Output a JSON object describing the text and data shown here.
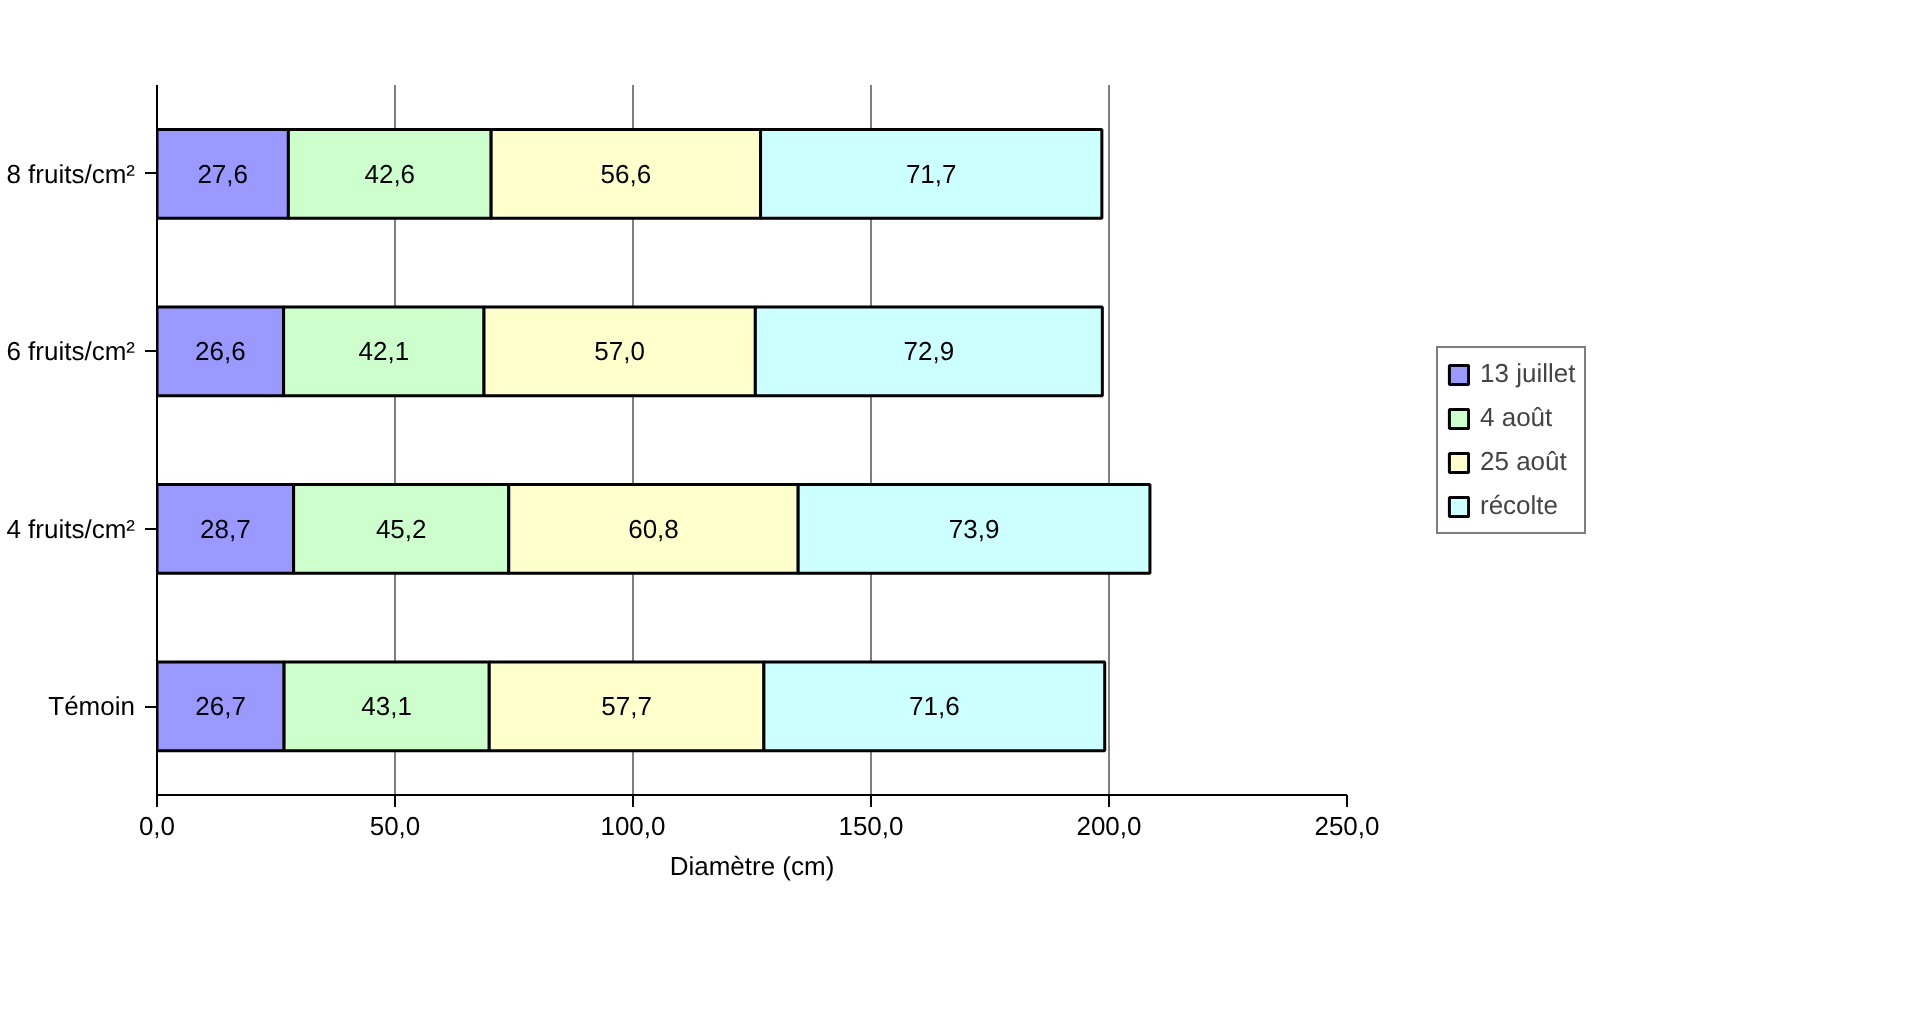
{
  "chart_data": {
    "type": "bar",
    "orientation": "horizontal",
    "stacked": true,
    "xlabel": "Diamètre (cm)",
    "categories": [
      "8 fruits/cm²",
      "6 fruits/cm²",
      "4 fruits/cm²",
      "Témoin"
    ],
    "series": [
      {
        "name": "13 juillet",
        "color": "#9999ff",
        "values": [
          27.6,
          26.6,
          28.7,
          26.7
        ],
        "value_labels": [
          "27,6",
          "26,6",
          "28,7",
          "26,7"
        ]
      },
      {
        "name": "4 août",
        "color": "#ccffcc",
        "values": [
          42.6,
          42.1,
          45.2,
          43.1
        ],
        "value_labels": [
          "42,6",
          "42,1",
          "45,2",
          "43,1"
        ]
      },
      {
        "name": "25 août",
        "color": "#ffffcc",
        "values": [
          56.6,
          57.0,
          60.8,
          57.7
        ],
        "value_labels": [
          "56,6",
          "57,0",
          "60,8",
          "57,7"
        ]
      },
      {
        "name": "récolte",
        "color": "#ccffff",
        "values": [
          71.7,
          72.9,
          73.9,
          71.6
        ],
        "value_labels": [
          "71,7",
          "72,9",
          "73,9",
          "71,6"
        ]
      }
    ],
    "xlim": [
      0,
      250
    ],
    "xticks": [
      {
        "value": 0,
        "label": "0,0"
      },
      {
        "value": 50,
        "label": "50,0"
      },
      {
        "value": 100,
        "label": "100,0"
      },
      {
        "value": 150,
        "label": "150,0"
      },
      {
        "value": 200,
        "label": "200,0"
      },
      {
        "value": 250,
        "label": "250,0"
      }
    ],
    "grid": "x",
    "legend": "right"
  }
}
